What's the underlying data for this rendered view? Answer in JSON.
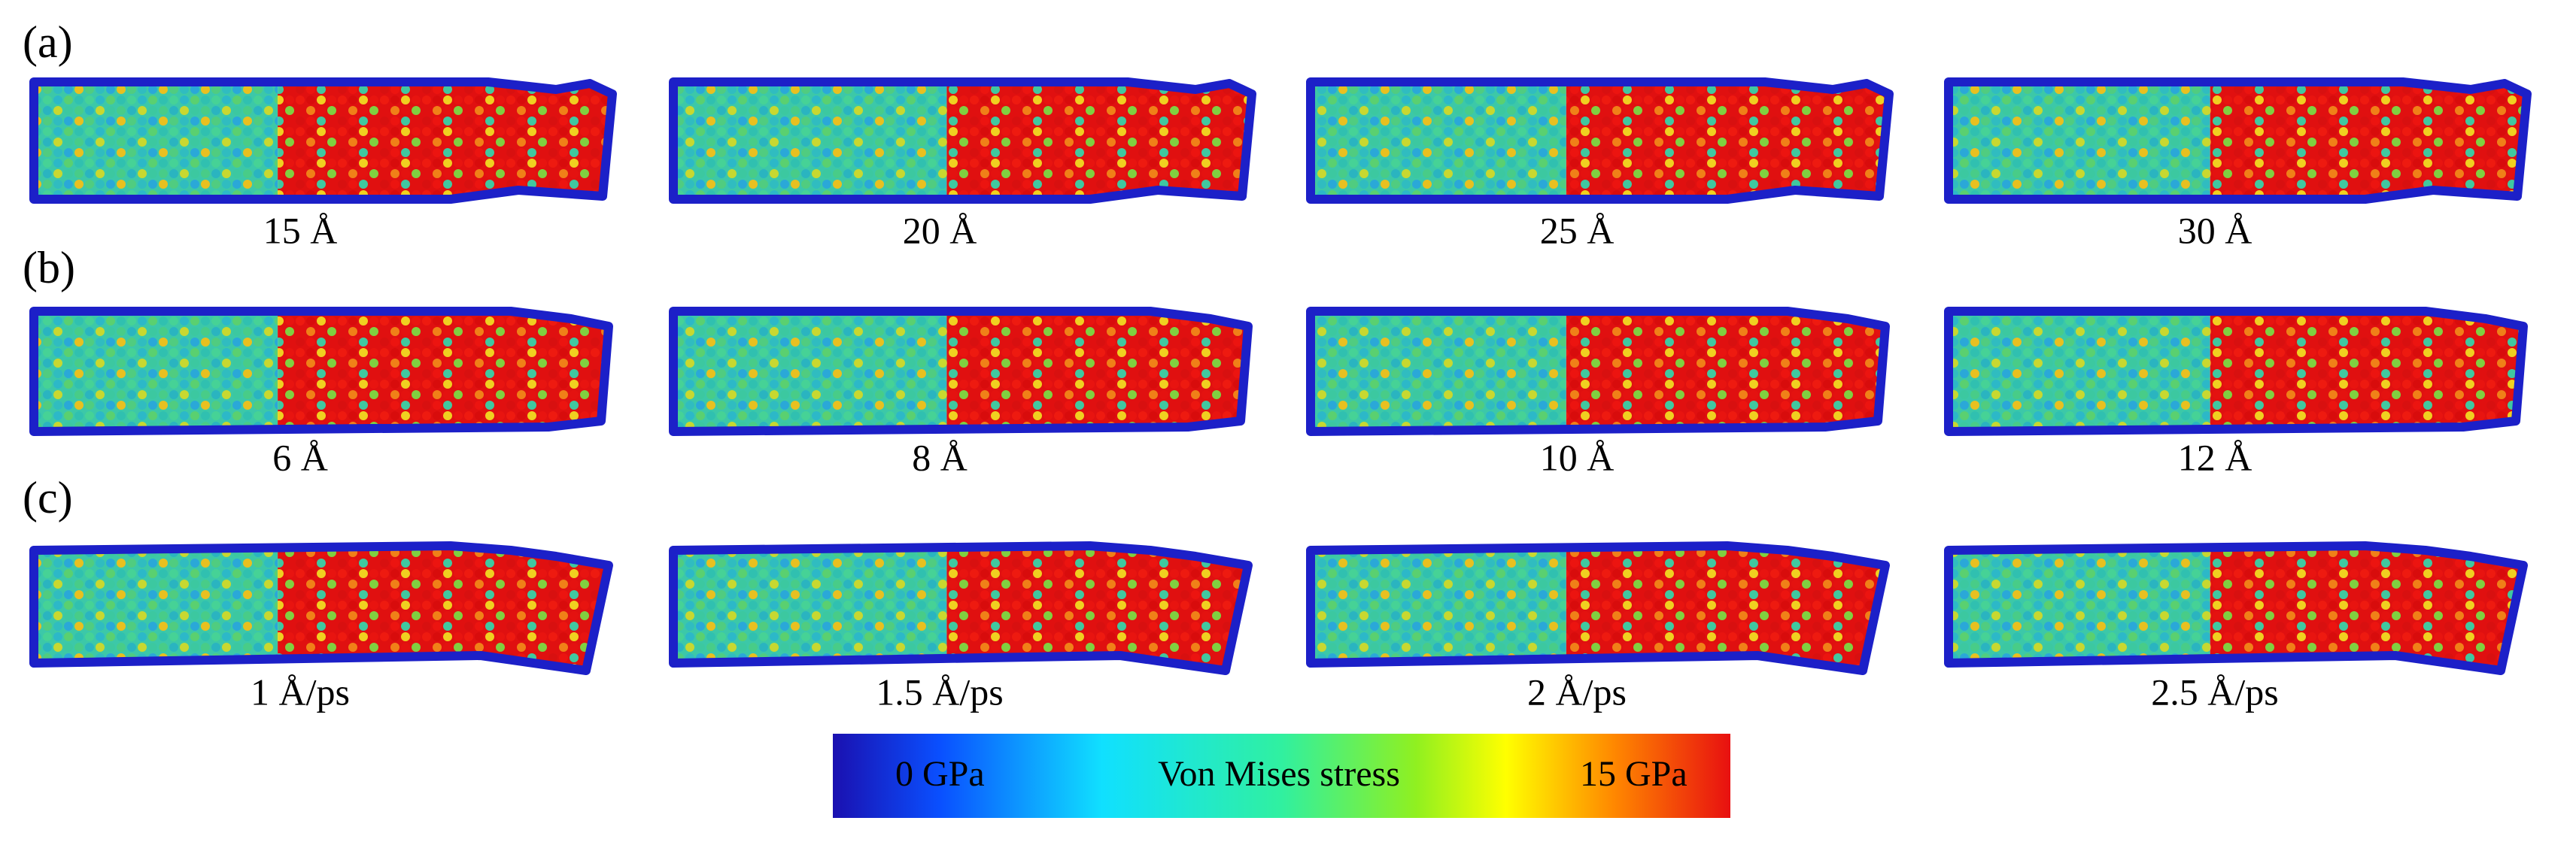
{
  "figure": {
    "rows": [
      {
        "label": "(a)",
        "captions": [
          "15 Å",
          "20 Å",
          "25 Å",
          "30 Å"
        ]
      },
      {
        "label": "(b)",
        "captions": [
          "6 Å",
          "8 Å",
          "10 Å",
          "12 Å"
        ]
      },
      {
        "label": "(c)",
        "captions": [
          "1 Å/ps",
          "1.5 Å/ps",
          "2 Å/ps",
          "2.5 Å/ps"
        ]
      }
    ],
    "colorbar": {
      "min_label": "0 GPa",
      "title": "Von Mises stress",
      "max_label": "15 GPa"
    }
  }
}
